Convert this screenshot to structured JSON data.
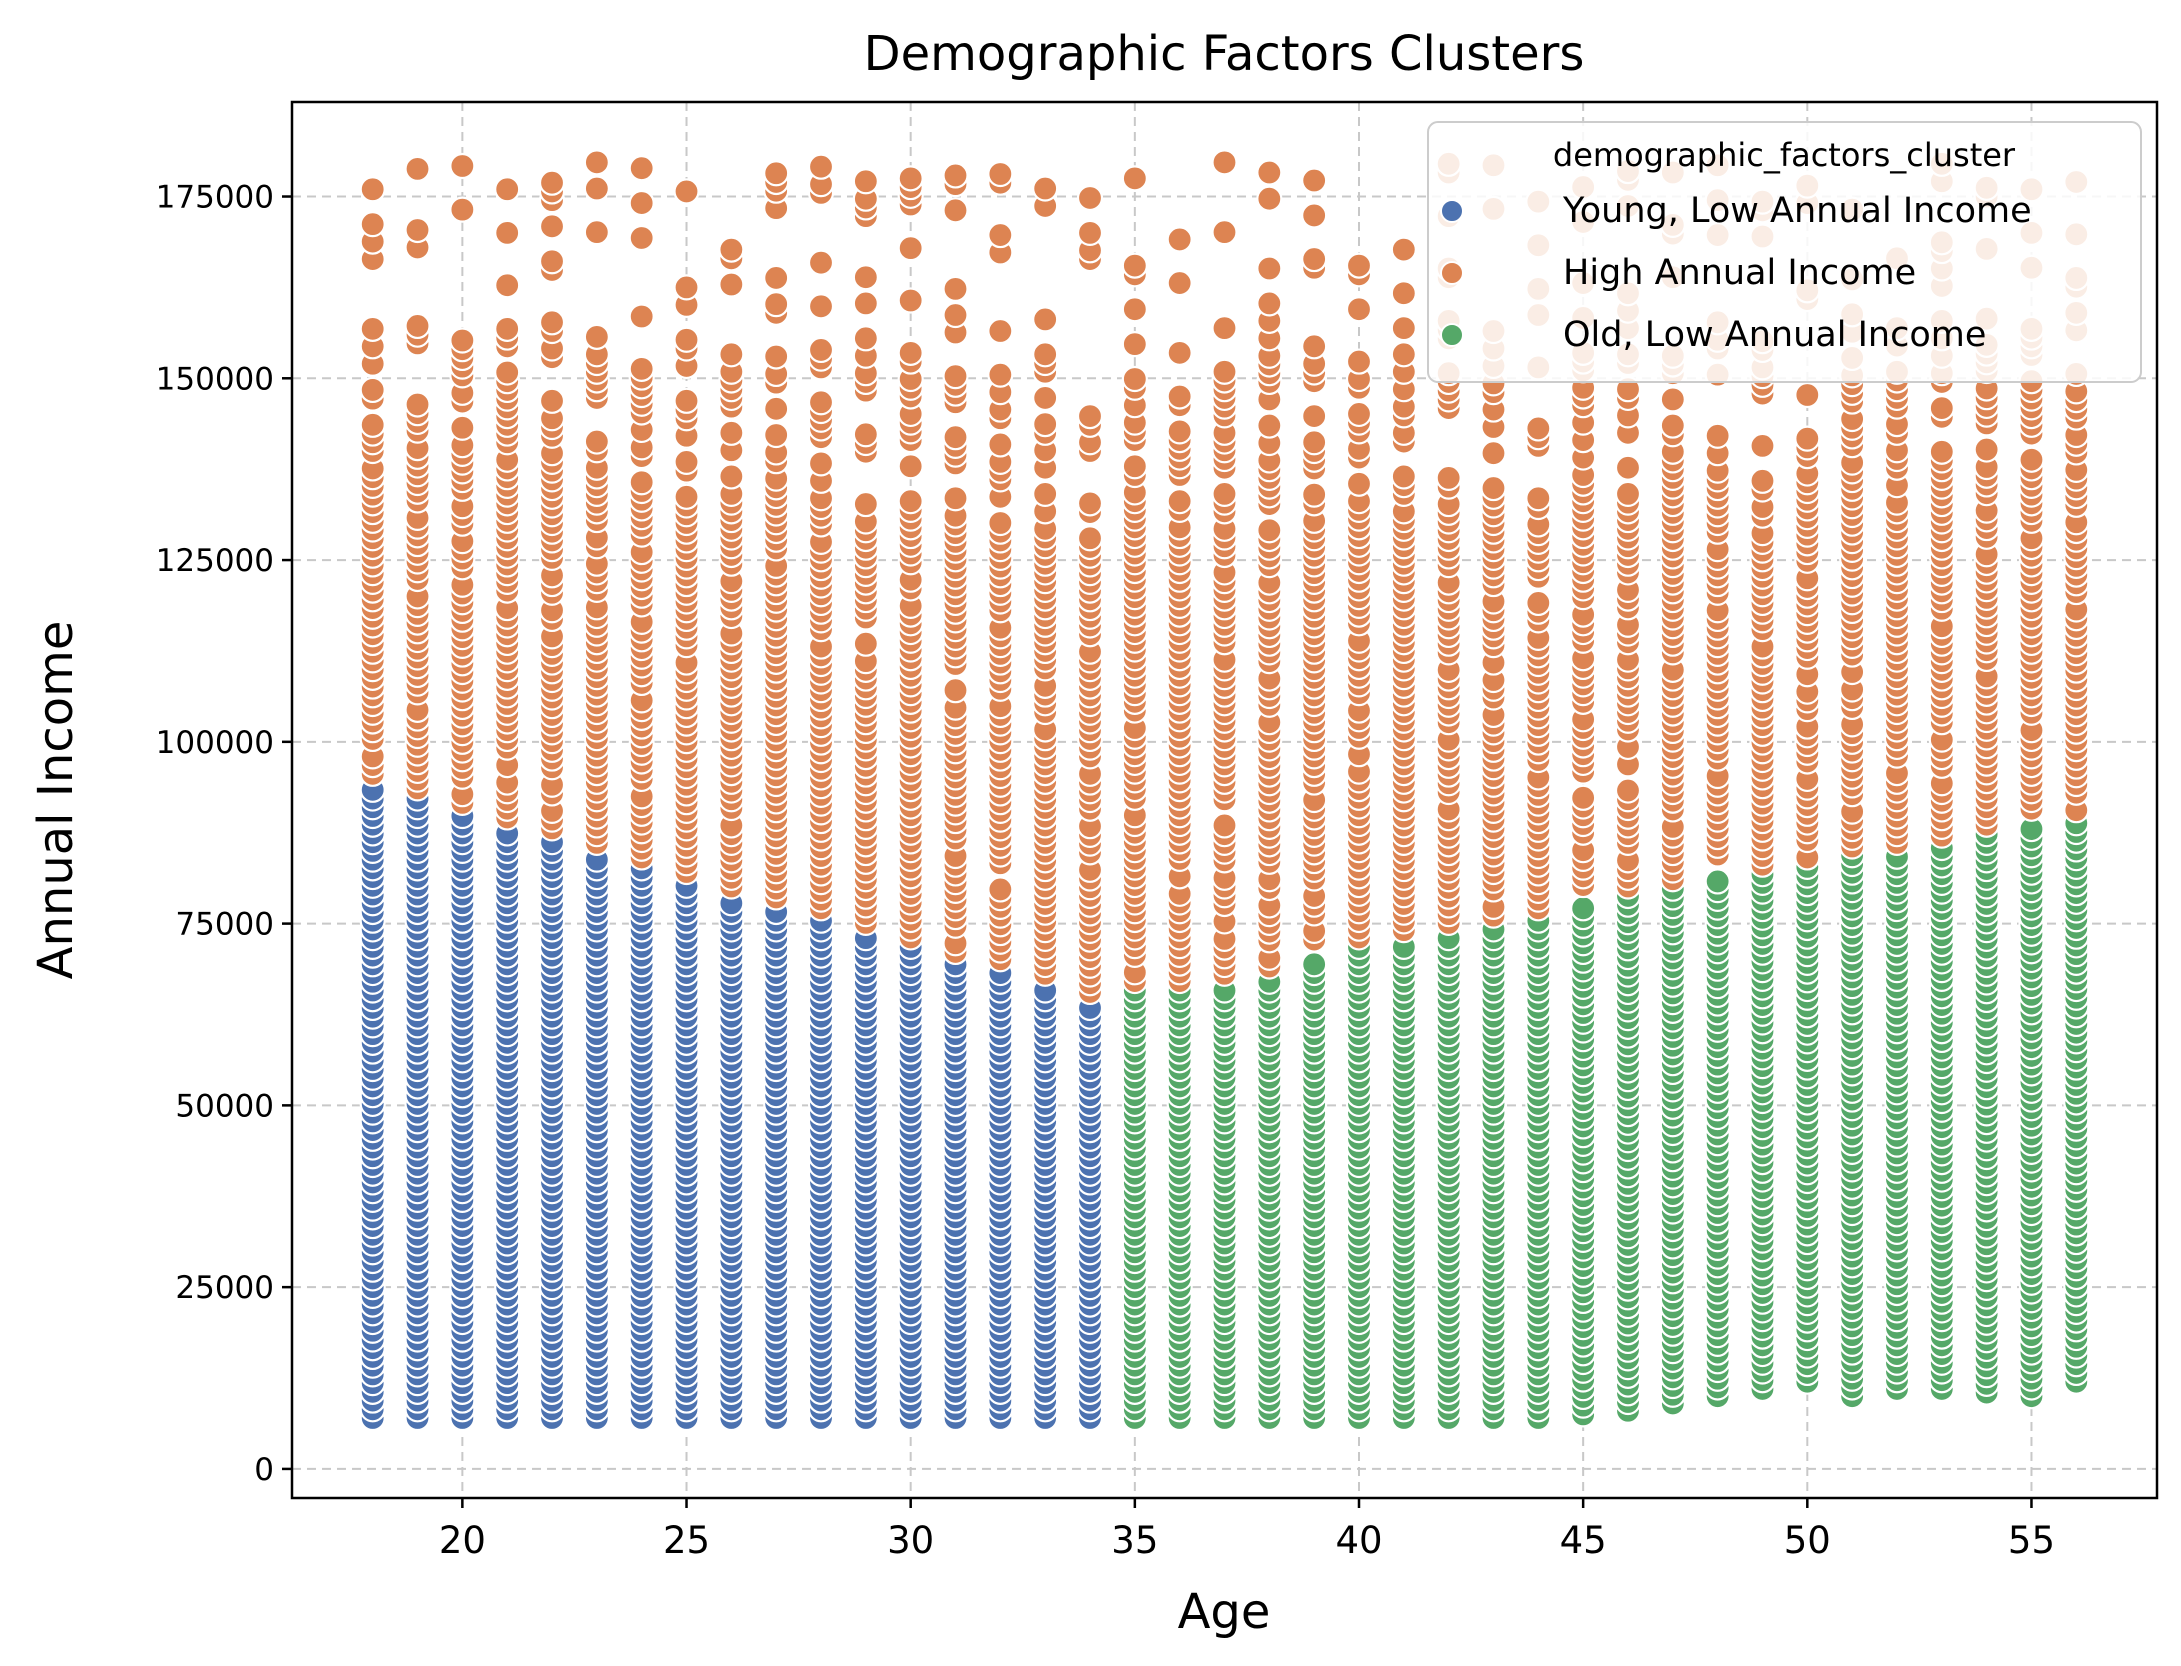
{
  "chart_data": {
    "type": "scatter",
    "title": "Demographic Factors Clusters",
    "xlabel": "Age",
    "ylabel": "Annual Income",
    "xlim": [
      16.2,
      57.8
    ],
    "ylim": [
      -4000,
      188000
    ],
    "x_ticks": [
      20,
      25,
      30,
      35,
      40,
      45,
      50,
      55
    ],
    "y_ticks": [
      0,
      25000,
      50000,
      75000,
      100000,
      125000,
      150000,
      175000
    ],
    "grid": true,
    "legend": {
      "title": "demographic_factors_cluster",
      "placement": "top-right",
      "entries": [
        {
          "name": "Young, Low Annual Income",
          "color": "#4c72b0"
        },
        {
          "name": "High Annual Income",
          "color": "#dd8452"
        },
        {
          "name": "Old, Low Annual Income",
          "color": "#55a868"
        }
      ]
    },
    "colors": {
      "young": "#4c72b0",
      "high": "#dd8452",
      "old": "#55a868"
    },
    "ages": [
      18,
      19,
      20,
      21,
      22,
      23,
      24,
      25,
      26,
      27,
      28,
      29,
      30,
      31,
      32,
      33,
      34,
      35,
      36,
      37,
      38,
      39,
      40,
      41,
      42,
      43,
      44,
      45,
      46,
      47,
      48,
      49,
      50,
      51,
      52,
      53,
      54,
      55,
      56
    ],
    "income_step": 1200,
    "income_range": [
      7000,
      180000
    ],
    "columns": [
      {
        "age": 18,
        "low_min": 7000,
        "boundary": 95000,
        "low": "young"
      },
      {
        "age": 19,
        "low_min": 7000,
        "boundary": 93000,
        "low": "young"
      },
      {
        "age": 20,
        "low_min": 7000,
        "boundary": 91000,
        "low": "young"
      },
      {
        "age": 21,
        "low_min": 7000,
        "boundary": 89000,
        "low": "young"
      },
      {
        "age": 22,
        "low_min": 7000,
        "boundary": 87500,
        "low": "young"
      },
      {
        "age": 23,
        "low_min": 7000,
        "boundary": 85500,
        "low": "young"
      },
      {
        "age": 24,
        "low_min": 7000,
        "boundary": 83500,
        "low": "young"
      },
      {
        "age": 25,
        "low_min": 7000,
        "boundary": 81500,
        "low": "young"
      },
      {
        "age": 26,
        "low_min": 7000,
        "boundary": 79500,
        "low": "young"
      },
      {
        "age": 27,
        "low_min": 7000,
        "boundary": 78000,
        "low": "young"
      },
      {
        "age": 28,
        "low_min": 7000,
        "boundary": 76500,
        "low": "young"
      },
      {
        "age": 29,
        "low_min": 7000,
        "boundary": 74500,
        "low": "young"
      },
      {
        "age": 30,
        "low_min": 7000,
        "boundary": 72500,
        "low": "young"
      },
      {
        "age": 31,
        "low_min": 7000,
        "boundary": 70500,
        "low": "young"
      },
      {
        "age": 32,
        "low_min": 7000,
        "boundary": 69500,
        "low": "young"
      },
      {
        "age": 33,
        "low_min": 7000,
        "boundary": 67500,
        "low": "young"
      },
      {
        "age": 34,
        "low_min": 7000,
        "boundary": 65000,
        "low": "young"
      },
      {
        "age": 35,
        "low_min": 7000,
        "boundary": 66500,
        "low": "old"
      },
      {
        "age": 36,
        "low_min": 7000,
        "boundary": 66500,
        "low": "old"
      },
      {
        "age": 37,
        "low_min": 7000,
        "boundary": 67500,
        "low": "old"
      },
      {
        "age": 38,
        "low_min": 7000,
        "boundary": 68500,
        "low": "old"
      },
      {
        "age": 39,
        "low_min": 7000,
        "boundary": 71000,
        "low": "old"
      },
      {
        "age": 40,
        "low_min": 7000,
        "boundary": 72500,
        "low": "old"
      },
      {
        "age": 41,
        "low_min": 7000,
        "boundary": 73500,
        "low": "old"
      },
      {
        "age": 42,
        "low_min": 7000,
        "boundary": 74500,
        "low": "old"
      },
      {
        "age": 43,
        "low_min": 7000,
        "boundary": 75500,
        "low": "old"
      },
      {
        "age": 44,
        "low_min": 7000,
        "boundary": 76500,
        "low": "old"
      },
      {
        "age": 45,
        "low_min": 7500,
        "boundary": 78500,
        "low": "old"
      },
      {
        "age": 46,
        "low_min": 8000,
        "boundary": 79500,
        "low": "old"
      },
      {
        "age": 47,
        "low_min": 9000,
        "boundary": 80500,
        "low": "old"
      },
      {
        "age": 48,
        "low_min": 10000,
        "boundary": 81500,
        "low": "old"
      },
      {
        "age": 49,
        "low_min": 11000,
        "boundary": 82500,
        "low": "old"
      },
      {
        "age": 50,
        "low_min": 12000,
        "boundary": 83500,
        "low": "old"
      },
      {
        "age": 51,
        "low_min": 10000,
        "boundary": 85000,
        "low": "old"
      },
      {
        "age": 52,
        "low_min": 11000,
        "boundary": 85500,
        "low": "old"
      },
      {
        "age": 53,
        "low_min": 11000,
        "boundary": 86500,
        "low": "old"
      },
      {
        "age": 54,
        "low_min": 10500,
        "boundary": 88000,
        "low": "old"
      },
      {
        "age": 55,
        "low_min": 10000,
        "boundary": 89000,
        "low": "old"
      },
      {
        "age": 56,
        "low_min": 12000,
        "boundary": 90000,
        "low": "old"
      }
    ]
  }
}
